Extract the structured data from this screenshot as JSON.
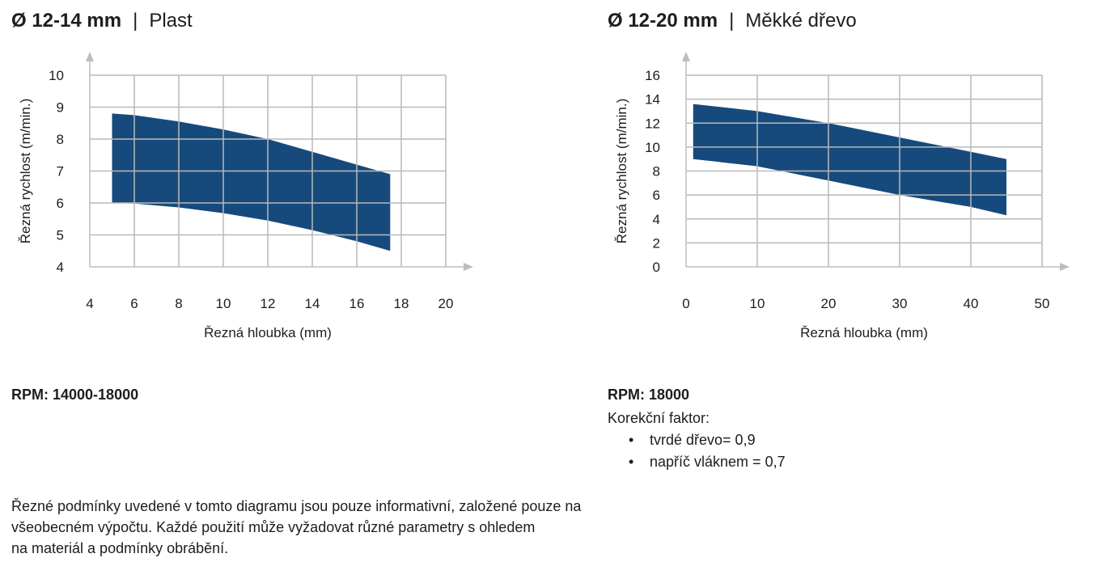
{
  "left_panel": {
    "diameter": "Ø 12-14 mm",
    "separator": "|",
    "material": "Plast",
    "rpm": "RPM: 14000-18000"
  },
  "right_panel": {
    "diameter": "Ø 12-20 mm",
    "separator": "|",
    "material": "Měkké dřevo",
    "rpm": "RPM: 18000",
    "correction_title": "Korekční faktor:",
    "correction_items": [
      "tvrdé dřevo= 0,9",
      "napříč vláknem = 0,7"
    ]
  },
  "note_lines": [
    "Řezné podmínky uvedené v tomto diagramu jsou pouze informativní, založené pouze na",
    "všeobecném výpočtu. Každé použití může vyžadovat různé parametry s ohledem",
    "na materiál a podmínky obrábění."
  ],
  "colors": {
    "band": "#174a7c",
    "grid": "#b9b9b9"
  },
  "chart_data": [
    {
      "type": "area",
      "xlabel": "Řezná hloubka (mm)",
      "ylabel": "Řezná rychlost (m/min.)",
      "xlim": [
        4,
        20
      ],
      "ylim": [
        4,
        10
      ],
      "x_ticks": [
        "4",
        "6",
        "8",
        "10",
        "12",
        "14",
        "16",
        "18",
        "20"
      ],
      "y_ticks": [
        "4",
        "5",
        "6",
        "7",
        "8",
        "9",
        "10"
      ],
      "grid": true,
      "upper": {
        "x": [
          5,
          6,
          8,
          10,
          12,
          14,
          16,
          17.5
        ],
        "y": [
          8.8,
          8.75,
          8.55,
          8.3,
          8.0,
          7.6,
          7.2,
          6.9
        ]
      },
      "lower": {
        "x": [
          5,
          6,
          8,
          10,
          12,
          14,
          16,
          17.5
        ],
        "y": [
          6.0,
          5.98,
          5.86,
          5.68,
          5.45,
          5.15,
          4.8,
          4.5
        ]
      }
    },
    {
      "type": "area",
      "xlabel": "Řezná hloubka (mm)",
      "ylabel": "Řezná rychlost (m/min.)",
      "xlim": [
        0,
        50
      ],
      "ylim": [
        0,
        16
      ],
      "x_ticks": [
        "0",
        "10",
        "20",
        "30",
        "40",
        "50"
      ],
      "y_ticks": [
        "0",
        "2",
        "4",
        "6",
        "8",
        "10",
        "12",
        "14",
        "16"
      ],
      "grid": true,
      "upper": {
        "x": [
          1,
          10,
          20,
          30,
          40,
          45
        ],
        "y": [
          13.6,
          13.0,
          12.0,
          10.8,
          9.6,
          9.0
        ]
      },
      "lower": {
        "x": [
          1,
          10,
          20,
          30,
          40,
          45
        ],
        "y": [
          9.0,
          8.4,
          7.2,
          6.0,
          5.0,
          4.3
        ]
      }
    }
  ]
}
